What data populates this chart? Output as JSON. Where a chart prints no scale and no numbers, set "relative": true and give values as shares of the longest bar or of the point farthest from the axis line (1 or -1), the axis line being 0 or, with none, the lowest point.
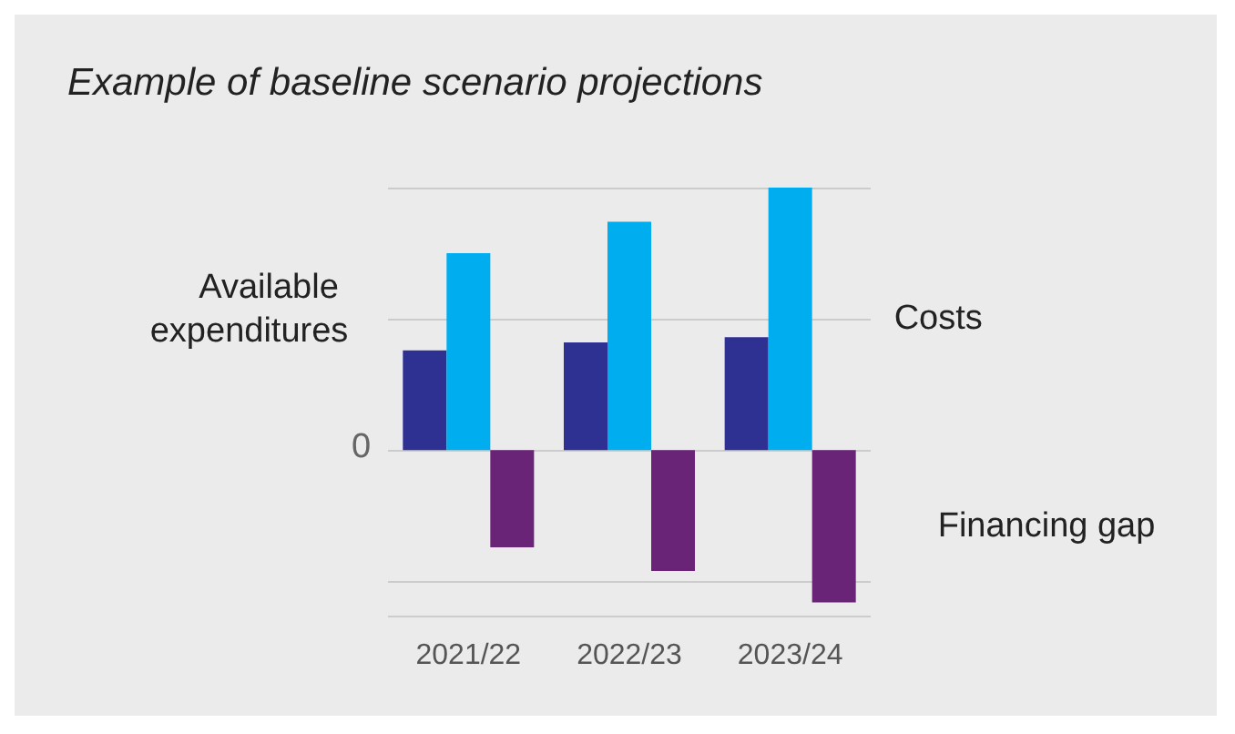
{
  "chart_data": {
    "type": "bar",
    "title": "Example of baseline scenario projections",
    "categories": [
      "2021/22",
      "2022/23",
      "2023/24"
    ],
    "relative": true,
    "grid": "y",
    "legend": false,
    "series": [
      {
        "name": "Available expenditures",
        "color": "#2e3192",
        "values": [
          0.38,
          0.41,
          0.43
        ]
      },
      {
        "name": "Costs",
        "color": "#00aeef",
        "values": [
          0.75,
          0.87,
          1
        ]
      },
      {
        "name": "Financing gap",
        "color": "#6a2477",
        "values": [
          -0.37,
          -0.46,
          -0.58
        ]
      }
    ],
    "annotations": [
      "0"
    ]
  }
}
